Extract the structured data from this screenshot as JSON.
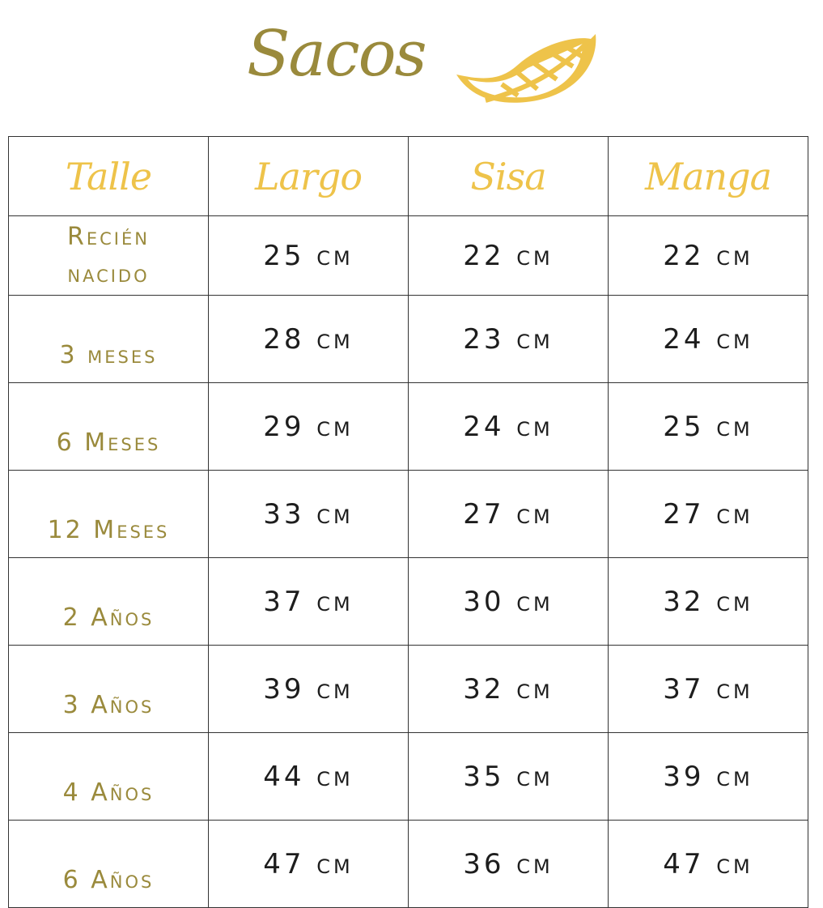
{
  "title": "Sacos",
  "colors": {
    "title": "#9a8a3c",
    "header": "#eec34a",
    "size_label": "#9a8a3c",
    "value": "#1d1d1d"
  },
  "icon": "leaf-icon",
  "headers": [
    "Talle",
    "Largo",
    "Sisa",
    "Manga"
  ],
  "rows": [
    {
      "talle": "Recién nacido",
      "largo": "25 cm",
      "sisa": "22 cm",
      "manga": "22 cm"
    },
    {
      "talle": "3 meses",
      "largo": "28 cm",
      "sisa": "23 cm",
      "manga": "24 cm"
    },
    {
      "talle": "6 Meses",
      "largo": "29 cm",
      "sisa": "24 cm",
      "manga": "25 cm"
    },
    {
      "talle": "12 Meses",
      "largo": "33 cm",
      "sisa": "27 cm",
      "manga": "27 cm"
    },
    {
      "talle": "2 Años",
      "largo": "37 cm",
      "sisa": "30 cm",
      "manga": "32 cm"
    },
    {
      "talle": "3 Años",
      "largo": "39 cm",
      "sisa": "32 cm",
      "manga": "37 cm"
    },
    {
      "talle": "4 Años",
      "largo": "44 cm",
      "sisa": "35 cm",
      "manga": "39 cm"
    },
    {
      "talle": "6 Años",
      "largo": "47 cm",
      "sisa": "36 cm",
      "manga": "47 cm"
    }
  ]
}
